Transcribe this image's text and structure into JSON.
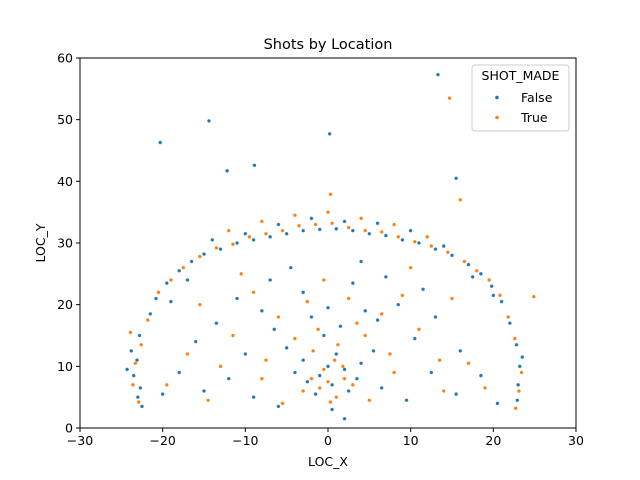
{
  "chart_data": {
    "type": "scatter",
    "title": "Shots by Location",
    "xlabel": "LOC_X",
    "ylabel": "LOC_Y",
    "xlim": [
      -30,
      30
    ],
    "ylim": [
      0,
      60
    ],
    "xticks": [
      -30,
      -20,
      -10,
      0,
      10,
      20,
      30
    ],
    "yticks": [
      0,
      10,
      20,
      30,
      40,
      50,
      60
    ],
    "xtick_labels": [
      "−30",
      "−20",
      "−10",
      "0",
      "10",
      "20",
      "30"
    ],
    "ytick_labels": [
      "0",
      "10",
      "20",
      "30",
      "40",
      "50",
      "60"
    ],
    "grid": false,
    "legend": {
      "title": "SHOT_MADE",
      "placement": "top-right",
      "entries": [
        "False",
        "True"
      ]
    },
    "colors": {
      "False": "#1f77b4",
      "True": "#ff7f0e"
    },
    "series": [
      {
        "name": "False",
        "points": [
          [
            13.3,
            57.3
          ],
          [
            -14.4,
            49.8
          ],
          [
            -20.3,
            46.3
          ],
          [
            0.2,
            47.7
          ],
          [
            -8.9,
            42.6
          ],
          [
            -12.2,
            41.7
          ],
          [
            15.5,
            40.5
          ],
          [
            -23.8,
            12.5
          ],
          [
            -23.5,
            8.5
          ],
          [
            -23.0,
            5.0
          ],
          [
            -22.8,
            15.0
          ],
          [
            -22.5,
            3.5
          ],
          [
            -24.3,
            9.5
          ],
          [
            -23.1,
            11.0
          ],
          [
            -22.7,
            6.5
          ],
          [
            -21.5,
            18.5
          ],
          [
            -20.8,
            21.0
          ],
          [
            -19.5,
            23.5
          ],
          [
            -18.0,
            25.5
          ],
          [
            -16.5,
            27.0
          ],
          [
            -15.0,
            28.2
          ],
          [
            -13.0,
            29.0
          ],
          [
            -11.0,
            30.0
          ],
          [
            -9.0,
            30.5
          ],
          [
            -7.0,
            31.0
          ],
          [
            -5.0,
            31.5
          ],
          [
            -3.0,
            32.0
          ],
          [
            -1.0,
            32.2
          ],
          [
            1.0,
            32.3
          ],
          [
            3.0,
            32.0
          ],
          [
            5.0,
            31.5
          ],
          [
            7.0,
            31.2
          ],
          [
            9.0,
            30.5
          ],
          [
            11.0,
            30.0
          ],
          [
            13.0,
            29.0
          ],
          [
            15.0,
            28.0
          ],
          [
            17.0,
            26.5
          ],
          [
            18.5,
            25.0
          ],
          [
            19.8,
            23.0
          ],
          [
            21.0,
            20.5
          ],
          [
            22.0,
            17.0
          ],
          [
            22.8,
            13.5
          ],
          [
            23.2,
            10.0
          ],
          [
            23.0,
            7.0
          ],
          [
            22.9,
            4.5
          ],
          [
            23.5,
            11.5
          ],
          [
            -14.0,
            30.5
          ],
          [
            -10.0,
            31.5
          ],
          [
            -6.0,
            33.0
          ],
          [
            -2.0,
            34.0
          ],
          [
            2.0,
            33.5
          ],
          [
            6.0,
            33.2
          ],
          [
            10.0,
            32.0
          ],
          [
            14.0,
            29.5
          ],
          [
            -17.0,
            24.0
          ],
          [
            17.5,
            24.5
          ],
          [
            -19.0,
            20.5
          ],
          [
            20.0,
            21.5
          ],
          [
            -4.0,
            9.0
          ],
          [
            -2.5,
            7.5
          ],
          [
            -1.0,
            8.5
          ],
          [
            0.5,
            7.0
          ],
          [
            2.0,
            9.5
          ],
          [
            3.5,
            8.0
          ],
          [
            -3.0,
            11.0
          ],
          [
            1.0,
            12.0
          ],
          [
            4.0,
            10.5
          ],
          [
            -1.5,
            5.5
          ],
          [
            0.0,
            10.0
          ],
          [
            2.5,
            6.0
          ],
          [
            -5.0,
            13.0
          ],
          [
            5.5,
            12.5
          ],
          [
            -6.5,
            16.0
          ],
          [
            6.0,
            17.5
          ],
          [
            -8.0,
            19.0
          ],
          [
            8.5,
            20.0
          ],
          [
            -10.0,
            12.0
          ],
          [
            10.5,
            14.5
          ],
          [
            -12.0,
            8.0
          ],
          [
            12.5,
            9.0
          ],
          [
            -15.0,
            6.0
          ],
          [
            15.5,
            5.5
          ],
          [
            -3.0,
            22.0
          ],
          [
            3.0,
            23.5
          ],
          [
            0.0,
            19.5
          ],
          [
            -7.0,
            24.0
          ],
          [
            7.0,
            24.5
          ],
          [
            -11.0,
            21.0
          ],
          [
            11.5,
            22.5
          ],
          [
            -16.0,
            14.0
          ],
          [
            16.0,
            12.5
          ],
          [
            -18.0,
            9.0
          ],
          [
            18.5,
            8.5
          ],
          [
            -9.0,
            5.0
          ],
          [
            9.5,
            4.5
          ],
          [
            0.5,
            3.0
          ],
          [
            -0.5,
            15.0
          ],
          [
            1.5,
            16.5
          ],
          [
            -2.0,
            18.0
          ],
          [
            4.5,
            19.0
          ],
          [
            -13.5,
            17.0
          ],
          [
            13.0,
            18.0
          ],
          [
            -20.0,
            5.5
          ],
          [
            20.5,
            4.0
          ],
          [
            -6.0,
            3.5
          ],
          [
            6.5,
            6.5
          ],
          [
            -4.5,
            26.0
          ],
          [
            4.0,
            27.0
          ],
          [
            2.0,
            1.5
          ]
        ]
      },
      {
        "name": "True",
        "points": [
          [
            14.7,
            53.5
          ],
          [
            0.3,
            37.9
          ],
          [
            16.0,
            37.0
          ],
          [
            -23.3,
            10.5
          ],
          [
            -23.6,
            7.0
          ],
          [
            -22.6,
            13.5
          ],
          [
            -22.9,
            4.2
          ],
          [
            -23.9,
            15.5
          ],
          [
            -21.8,
            17.5
          ],
          [
            -20.5,
            22.0
          ],
          [
            -19.0,
            24.0
          ],
          [
            -17.5,
            26.0
          ],
          [
            -15.5,
            27.8
          ],
          [
            -13.5,
            29.2
          ],
          [
            -11.5,
            29.8
          ],
          [
            -9.5,
            31.0
          ],
          [
            -7.5,
            31.5
          ],
          [
            -5.5,
            32.0
          ],
          [
            -3.5,
            32.8
          ],
          [
            -1.5,
            33.0
          ],
          [
            0.5,
            33.2
          ],
          [
            2.5,
            32.5
          ],
          [
            4.5,
            32.0
          ],
          [
            6.5,
            31.8
          ],
          [
            8.5,
            31.0
          ],
          [
            10.5,
            30.2
          ],
          [
            12.5,
            29.5
          ],
          [
            14.5,
            28.5
          ],
          [
            16.5,
            27.0
          ],
          [
            18.0,
            25.5
          ],
          [
            19.5,
            24.0
          ],
          [
            20.8,
            21.5
          ],
          [
            21.8,
            18.0
          ],
          [
            22.6,
            14.5
          ],
          [
            23.4,
            9.0
          ],
          [
            23.1,
            6.0
          ],
          [
            24.9,
            21.3
          ],
          [
            22.7,
            3.2
          ],
          [
            -12.0,
            32.0
          ],
          [
            -8.0,
            33.5
          ],
          [
            -4.0,
            34.5
          ],
          [
            0.0,
            35.0
          ],
          [
            4.0,
            34.0
          ],
          [
            8.0,
            33.0
          ],
          [
            12.0,
            31.0
          ],
          [
            -2.0,
            8.0
          ],
          [
            -1.0,
            6.5
          ],
          [
            0.0,
            7.5
          ],
          [
            1.0,
            5.0
          ],
          [
            2.0,
            8.0
          ],
          [
            -3.0,
            6.0
          ],
          [
            3.0,
            7.0
          ],
          [
            -0.5,
            9.5
          ],
          [
            0.8,
            11.0
          ],
          [
            -1.8,
            12.5
          ],
          [
            1.8,
            10.0
          ],
          [
            -4.0,
            14.5
          ],
          [
            4.5,
            15.0
          ],
          [
            -6.0,
            18.0
          ],
          [
            6.5,
            18.5
          ],
          [
            -9.0,
            22.0
          ],
          [
            9.0,
            21.5
          ],
          [
            -11.5,
            15.0
          ],
          [
            11.0,
            16.0
          ],
          [
            -13.0,
            10.0
          ],
          [
            13.5,
            11.0
          ],
          [
            -14.5,
            4.5
          ],
          [
            14.0,
            6.0
          ],
          [
            -2.5,
            20.5
          ],
          [
            2.5,
            21.0
          ],
          [
            -0.5,
            24.0
          ],
          [
            -8.0,
            8.0
          ],
          [
            8.0,
            9.0
          ],
          [
            -17.0,
            12.0
          ],
          [
            17.0,
            10.5
          ],
          [
            -19.5,
            7.0
          ],
          [
            19.0,
            6.5
          ],
          [
            -5.5,
            4.0
          ],
          [
            5.0,
            4.5
          ],
          [
            1.2,
            13.5
          ],
          [
            -1.2,
            16.0
          ],
          [
            3.5,
            17.0
          ],
          [
            -10.5,
            25.0
          ],
          [
            10.0,
            26.0
          ],
          [
            -15.5,
            20.0
          ],
          [
            15.0,
            21.0
          ],
          [
            -7.5,
            11.0
          ],
          [
            7.5,
            12.0
          ],
          [
            0.3,
            4.2
          ]
        ]
      }
    ]
  }
}
